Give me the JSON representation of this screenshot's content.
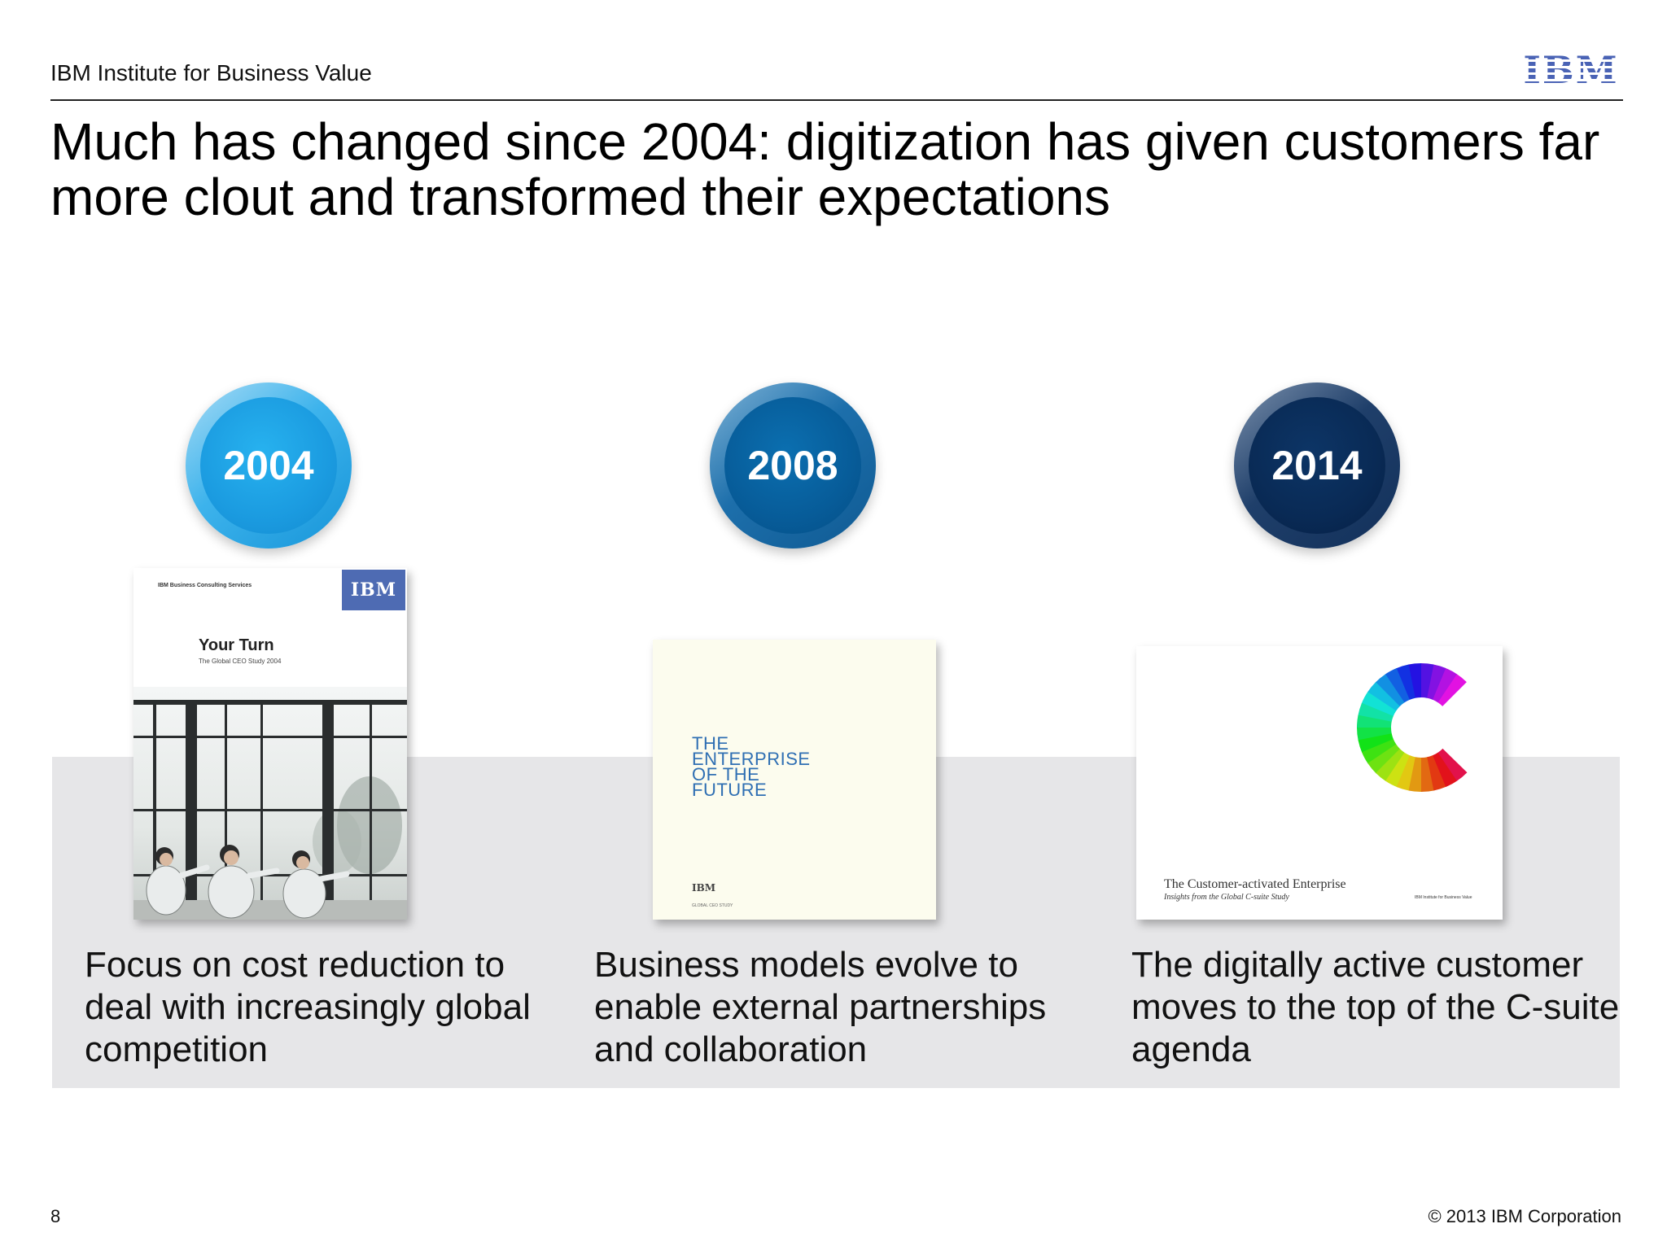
{
  "header": {
    "institute": "IBM Institute for Business Value",
    "logo_text": "IBM"
  },
  "title": "Much has changed since 2004: digitization has given customers far more clout and transformed their expectations",
  "columns": [
    {
      "year": "2004",
      "color": "#1b9be0",
      "cover": {
        "top_text": "IBM Business Consulting Services",
        "logo": "IBM",
        "title": "Your Turn",
        "subtitle": "The Global CEO Study 2004"
      },
      "caption": "Focus on cost reduction to deal with increasingly global competition"
    },
    {
      "year": "2008",
      "color": "#075c99",
      "cover": {
        "title": "THE ENTERPRISE OF THE FUTURE",
        "logo": "IBM",
        "small": "GLOBAL CEO STUDY"
      },
      "caption": "Business models evolve to enable external partnerships and collaboration"
    },
    {
      "year": "2014",
      "color": "#092a55",
      "cover": {
        "title": "The Customer-activated Enterprise",
        "subtitle": "Insights from the Global C-suite Study",
        "small": "IBM Institute for Business Value"
      },
      "caption": "The digitally active customer moves to the top of the C-suite agenda"
    }
  ],
  "footer": {
    "page_number": "8",
    "copyright": "© 2013 IBM Corporation"
  }
}
